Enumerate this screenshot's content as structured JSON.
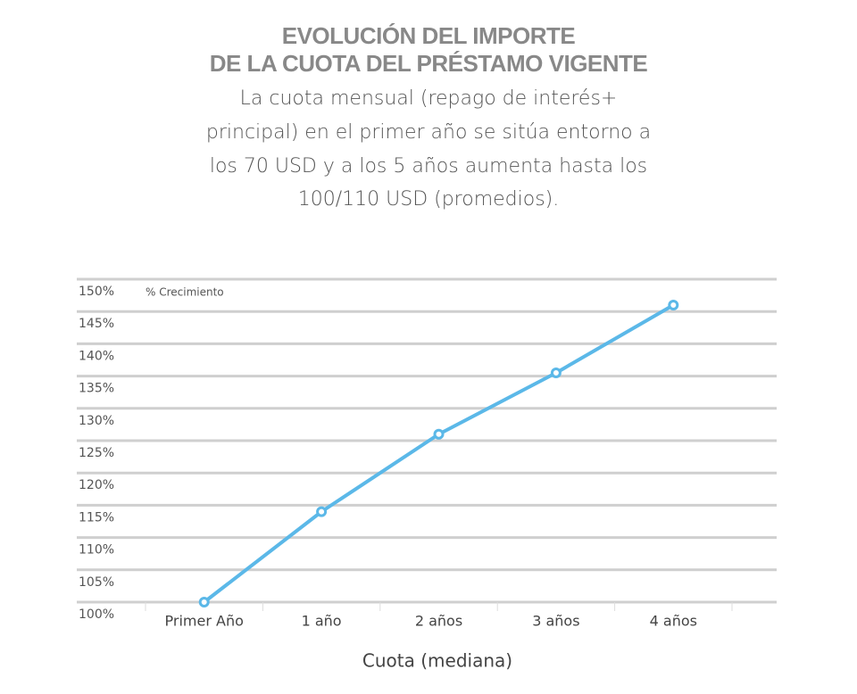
{
  "chart_data": {
    "type": "line",
    "title": [
      "EVOLUCIÓN DEL IMPORTE",
      "DE LA CUOTA DEL PRÉSTAMO VIGENTE"
    ],
    "subtitle": [
      "La cuota mensual (repago de interés+",
      "principal) en el primer año se sitúa entorno a",
      "los 70 USD y a los 5 años aumenta hasta los",
      "100/110 USD (promedios)."
    ],
    "y_label": "% Crecimiento",
    "x_label": "Cuota (mediana)",
    "categories": [
      "Primer Año",
      "1 año",
      "2 años",
      "3 años",
      "4 años"
    ],
    "values": [
      100,
      114,
      126,
      135.5,
      146
    ],
    "color": "#5bb8e8",
    "ylim": [
      100,
      150
    ],
    "yticks": [
      {
        "value": 100,
        "label": "100%"
      },
      {
        "value": 105,
        "label": "105%"
      },
      {
        "value": 110,
        "label": "110%"
      },
      {
        "value": 115,
        "label": "115%"
      },
      {
        "value": 120,
        "label": "120%"
      },
      {
        "value": 125,
        "label": "125%"
      },
      {
        "value": 130,
        "label": "130%"
      },
      {
        "value": 135,
        "label": "135%"
      },
      {
        "value": 140,
        "label": "140%"
      },
      {
        "value": 145,
        "label": "145%"
      },
      {
        "value": 150,
        "label": "150%"
      }
    ],
    "grid": true
  }
}
